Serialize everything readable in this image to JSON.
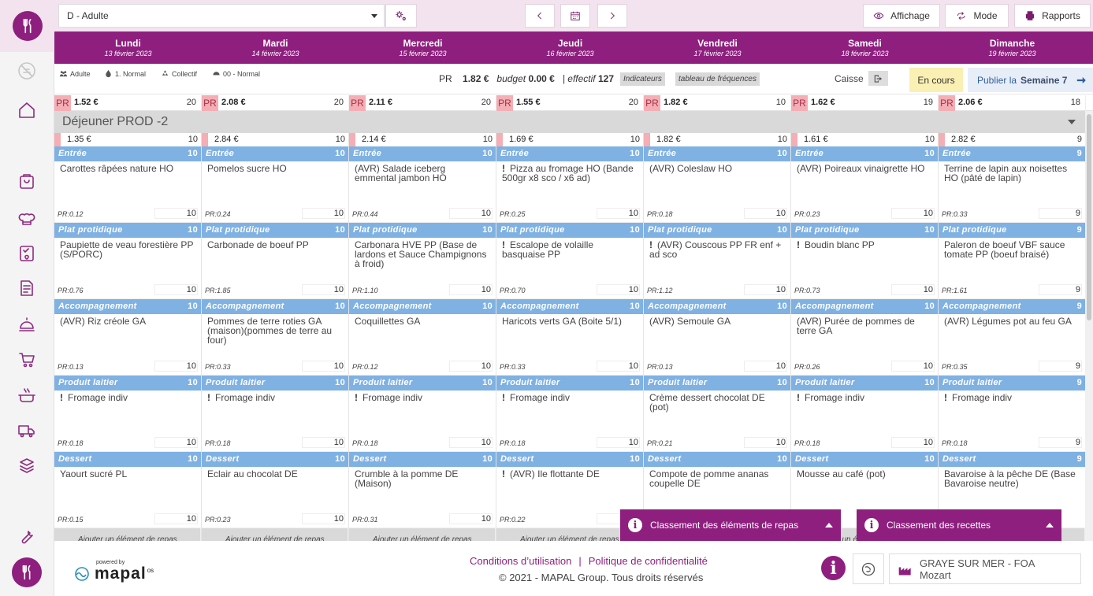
{
  "topbar": {
    "site_select": "D - Adulte",
    "affichage": "Affichage",
    "mode": "Mode",
    "rapports": "Rapports"
  },
  "days": [
    {
      "name": "Lundi",
      "date": "13 février 2023"
    },
    {
      "name": "Mardi",
      "date": "14 février 2023"
    },
    {
      "name": "Mercredi",
      "date": "15 février 2023"
    },
    {
      "name": "Jeudi",
      "date": "16 février 2023"
    },
    {
      "name": "Vendredi",
      "date": "17 février 2023"
    },
    {
      "name": "Samedi",
      "date": "18 février 2023"
    },
    {
      "name": "Dimanche",
      "date": "19 février 2023"
    }
  ],
  "infobar": {
    "tags": [
      "Adulte",
      "1. Normal",
      "Collectif",
      "00 - Normal"
    ],
    "pr_label": "PR",
    "pr_value": "1.82 €",
    "budget_label": "budget",
    "budget_value": "0.00 €",
    "effectif_label": "| effectif",
    "effectif_value": "127",
    "indicateurs": "Indicateurs",
    "frequences": "tableau de fréquences",
    "caisse": "Caisse",
    "en_cours": "En cours",
    "publier": "Publier la",
    "semaine": "Semaine 7"
  },
  "pr_row": [
    {
      "label": "PR",
      "value": "1.52 €",
      "count": "20"
    },
    {
      "label": "PR",
      "value": "2.08 €",
      "count": "20"
    },
    {
      "label": "PR",
      "value": "2.11 €",
      "count": "20"
    },
    {
      "label": "PR",
      "value": "1.55 €",
      "count": "20"
    },
    {
      "label": "PR",
      "value": "1.82 €",
      "count": "10"
    },
    {
      "label": "PR",
      "value": "1.62 €",
      "count": "19"
    },
    {
      "label": "PR",
      "value": "2.06 €",
      "count": "18"
    }
  ],
  "meal": {
    "title": "Déjeuner PROD -2",
    "add_label": "Ajouter un élément de repas",
    "columns": [
      {
        "cost": "1.35 €",
        "count": "10",
        "categories": [
          {
            "name": "Entrée",
            "count": "10",
            "item": "Carottes râpées nature HO",
            "warn": false,
            "pr": "PR:0.12",
            "qty": "10"
          },
          {
            "name": "Plat protidique",
            "count": "10",
            "item": "Paupiette de veau forestière PP (S/PORC)",
            "warn": false,
            "pr": "PR:0.76",
            "qty": "10"
          },
          {
            "name": "Accompagnement",
            "count": "10",
            "item": "(AVR) Riz créole GA",
            "warn": false,
            "pr": "PR:0.13",
            "qty": "10"
          },
          {
            "name": "Produit laitier",
            "count": "10",
            "item": "Fromage indiv",
            "warn": true,
            "pr": "PR:0.18",
            "qty": "10"
          },
          {
            "name": "Dessert",
            "count": "10",
            "item": "Yaourt sucré PL",
            "warn": false,
            "pr": "PR:0.15",
            "qty": "10"
          }
        ]
      },
      {
        "cost": "2.84 €",
        "count": "10",
        "categories": [
          {
            "name": "Entrée",
            "count": "10",
            "item": "Pomelos sucre HO",
            "warn": false,
            "pr": "PR:0.24",
            "qty": "10"
          },
          {
            "name": "Plat protidique",
            "count": "10",
            "item": "Carbonade de boeuf PP",
            "warn": false,
            "pr": "PR:1.85",
            "qty": "10"
          },
          {
            "name": "Accompagnement",
            "count": "10",
            "item": "Pommes de terre roties GA (maison)(pommes de terre au four)",
            "warn": false,
            "pr": "PR:0.33",
            "qty": "10"
          },
          {
            "name": "Produit laitier",
            "count": "10",
            "item": "Fromage indiv",
            "warn": true,
            "pr": "PR:0.18",
            "qty": "10"
          },
          {
            "name": "Dessert",
            "count": "10",
            "item": "Eclair au chocolat DE",
            "warn": false,
            "pr": "PR:0.23",
            "qty": "10"
          }
        ]
      },
      {
        "cost": "2.14 €",
        "count": "10",
        "categories": [
          {
            "name": "Entrée",
            "count": "10",
            "item": "(AVR) Salade iceberg emmental jambon HO",
            "warn": false,
            "pr": "PR:0.44",
            "qty": "10"
          },
          {
            "name": "Plat protidique",
            "count": "10",
            "item": "Carbonara HVE PP (Base de lardons et Sauce Champignons à froid)",
            "warn": false,
            "pr": "PR:1.10",
            "qty": "10"
          },
          {
            "name": "Accompagnement",
            "count": "10",
            "item": "Coquillettes GA",
            "warn": false,
            "pr": "PR:0.12",
            "qty": "10"
          },
          {
            "name": "Produit laitier",
            "count": "10",
            "item": "Fromage indiv",
            "warn": true,
            "pr": "PR:0.18",
            "qty": "10"
          },
          {
            "name": "Dessert",
            "count": "10",
            "item": "Crumble à la pomme DE (Maison)",
            "warn": false,
            "pr": "PR:0.31",
            "qty": "10"
          }
        ]
      },
      {
        "cost": "1.69 €",
        "count": "10",
        "categories": [
          {
            "name": "Entrée",
            "count": "10",
            "item": "Pizza au fromage HO (Bande 500gr x8 sco / x6 ad)",
            "warn": true,
            "pr": "PR:0.25",
            "qty": "10"
          },
          {
            "name": "Plat protidique",
            "count": "10",
            "item": "Escalope de volaille basquaise PP",
            "warn": true,
            "pr": "PR:0.70",
            "qty": "10"
          },
          {
            "name": "Accompagnement",
            "count": "10",
            "item": "Haricots verts GA (Boite 5/1)",
            "warn": false,
            "pr": "PR:0.33",
            "qty": "10"
          },
          {
            "name": "Produit laitier",
            "count": "10",
            "item": "Fromage indiv",
            "warn": true,
            "pr": "PR:0.18",
            "qty": "10"
          },
          {
            "name": "Dessert",
            "count": "10",
            "item": "(AVR) Ile flottante DE",
            "warn": true,
            "pr": "PR:0.22",
            "qty": "10"
          }
        ]
      },
      {
        "cost": "1.82 €",
        "count": "10",
        "categories": [
          {
            "name": "Entrée",
            "count": "10",
            "item": "(AVR) Coleslaw HO",
            "warn": false,
            "pr": "PR:0.18",
            "qty": "10"
          },
          {
            "name": "Plat protidique",
            "count": "10",
            "item": "(AVR) Couscous PP FR enf + ad sco",
            "warn": true,
            "pr": "PR:1.12",
            "qty": "10"
          },
          {
            "name": "Accompagnement",
            "count": "10",
            "item": "(AVR) Semoule GA",
            "warn": false,
            "pr": "PR:0.13",
            "qty": "10"
          },
          {
            "name": "Produit laitier",
            "count": "10",
            "item": "Crème dessert chocolat DE (pot)",
            "warn": false,
            "pr": "PR:0.21",
            "qty": "10"
          },
          {
            "name": "Dessert",
            "count": "10",
            "item": "Compote de pomme ananas coupelle DE",
            "warn": false,
            "pr": "",
            "qty": ""
          }
        ]
      },
      {
        "cost": "1.61 €",
        "count": "10",
        "categories": [
          {
            "name": "Entrée",
            "count": "10",
            "item": "(AVR) Poireaux vinaigrette HO",
            "warn": false,
            "pr": "PR:0.23",
            "qty": "10"
          },
          {
            "name": "Plat protidique",
            "count": "10",
            "item": "Boudin blanc PP",
            "warn": true,
            "pr": "PR:0.73",
            "qty": "10"
          },
          {
            "name": "Accompagnement",
            "count": "10",
            "item": "(AVR) Purée de pommes de terre GA",
            "warn": false,
            "pr": "PR:0.26",
            "qty": "10"
          },
          {
            "name": "Produit laitier",
            "count": "10",
            "item": "Fromage indiv",
            "warn": true,
            "pr": "PR:0.18",
            "qty": "10"
          },
          {
            "name": "Dessert",
            "count": "10",
            "item": "Mousse au café (pot)",
            "warn": false,
            "pr": "",
            "qty": ""
          }
        ]
      },
      {
        "cost": "2.82 €",
        "count": "9",
        "categories": [
          {
            "name": "Entrée",
            "count": "9",
            "item": "Terrine de lapin aux noisettes HO (pâté de lapin)",
            "warn": false,
            "pr": "PR:0.33",
            "qty": "9"
          },
          {
            "name": "Plat protidique",
            "count": "9",
            "item": "Paleron de boeuf VBF sauce tomate PP (boeuf braisé)",
            "warn": false,
            "pr": "PR:1.61",
            "qty": "9"
          },
          {
            "name": "Accompagnement",
            "count": "9",
            "item": "(AVR) Légumes pot au feu GA",
            "warn": false,
            "pr": "PR:0.35",
            "qty": "9"
          },
          {
            "name": "Produit laitier",
            "count": "9",
            "item": "Fromage indiv",
            "warn": true,
            "pr": "PR:0.18",
            "qty": "9"
          },
          {
            "name": "Dessert",
            "count": "9",
            "item": "Bavaroise à la pêche DE (Base Bavaroise neutre)",
            "warn": false,
            "pr": "",
            "qty": ""
          }
        ]
      }
    ]
  },
  "panels": {
    "left": "Classement des éléments de repas",
    "right": "Classement des recettes"
  },
  "footer": {
    "powered": "powered by",
    "brand": "mapal",
    "brand_suffix": "os",
    "conditions": "Conditions d’utilisation",
    "separator": "|",
    "privacy": "Politique de confidentialité",
    "copyright": "© 2021 - MAPAL Group. Tous droits réservés",
    "site_name": "GRAYE SUR MER - FOA",
    "site_sub": "Mozart"
  },
  "colors": {
    "brand": "#8e1f7e",
    "category": "#7fb1e3",
    "pr_pink": "#f4aeb5",
    "en_cours": "#fbf0b3"
  }
}
